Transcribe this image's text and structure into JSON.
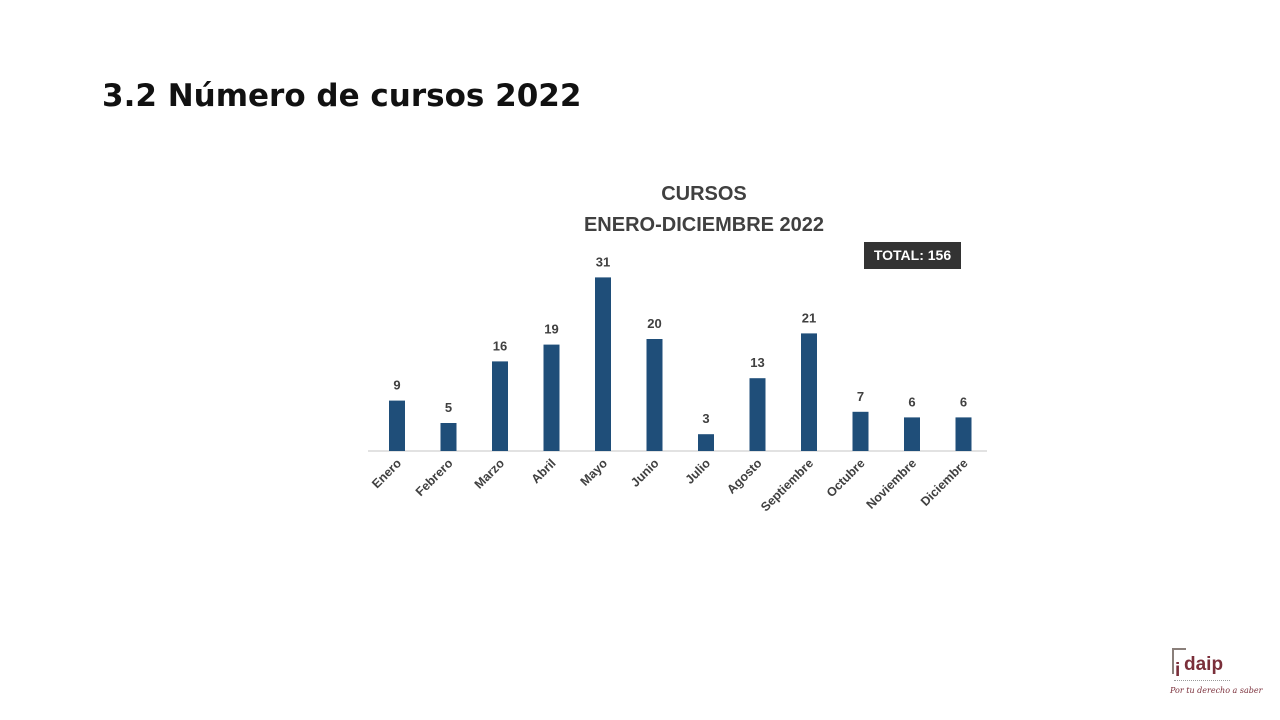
{
  "slide": {
    "title": "3.2 Número de cursos 2022"
  },
  "chart_data": {
    "type": "bar",
    "title_line1": "CURSOS",
    "title_line2": "ENERO-DICIEMBRE 2022",
    "total_label": "TOTAL: 156",
    "categories": [
      "Enero",
      "Febrero",
      "Marzo",
      "Abril",
      "Mayo",
      "Junio",
      "Julio",
      "Agosto",
      "Septiembre",
      "Octubre",
      "Noviembre",
      "Diciembre"
    ],
    "values": [
      9,
      5,
      16,
      19,
      31,
      20,
      3,
      13,
      21,
      7,
      6,
      6
    ],
    "bar_color": "#1f4e79",
    "axis_color": "#d9d9d9",
    "grid": false,
    "legend": "none"
  },
  "logo": {
    "text": "daip",
    "initial": "i",
    "slogan": "Por tu derecho a saber"
  }
}
